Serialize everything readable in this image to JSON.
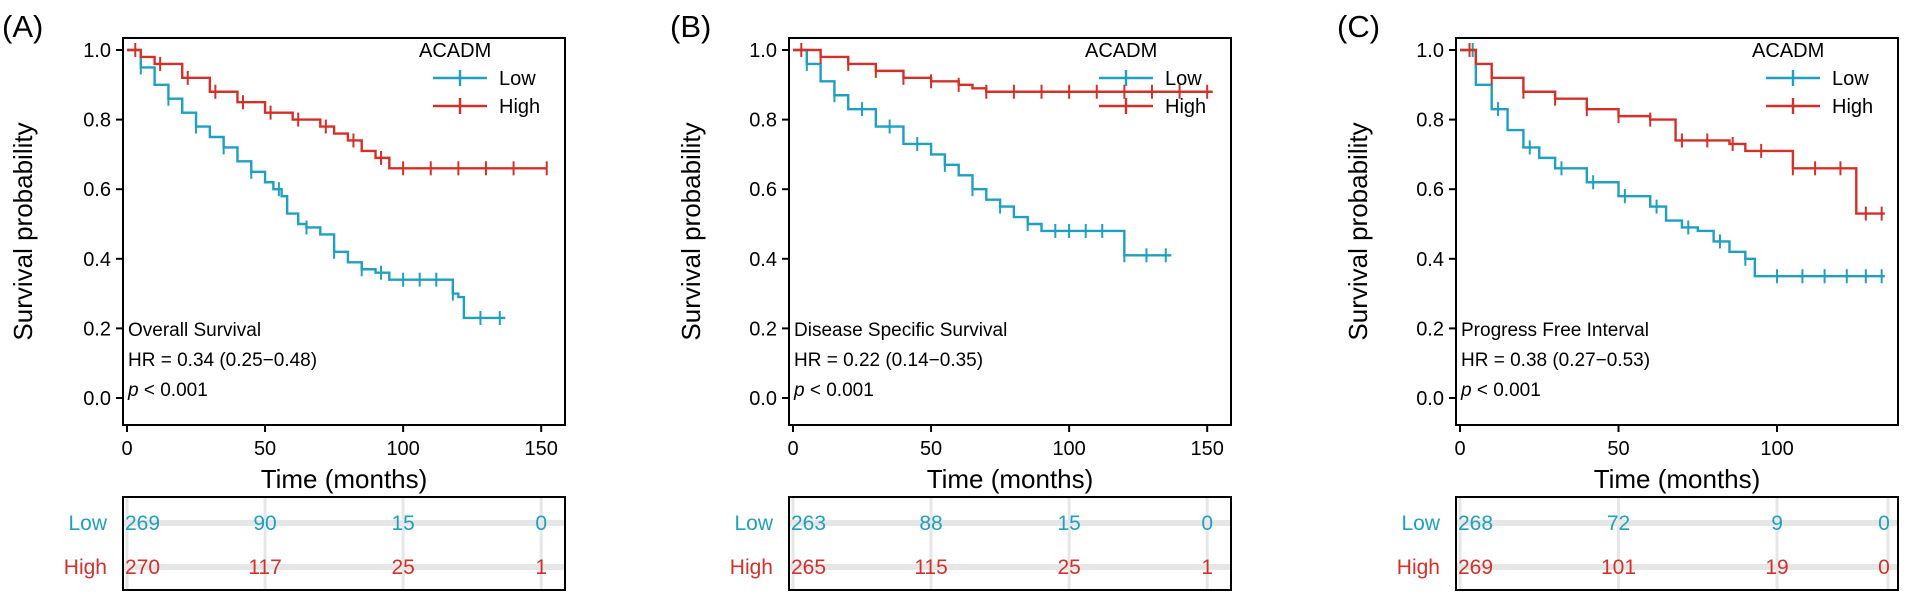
{
  "colors": {
    "low": "#1f9fc1",
    "high": "#d3302a",
    "axis": "#000000",
    "grid": "#e6e6e6"
  },
  "chart_data": [
    {
      "type": "line",
      "panel_label": "(A)",
      "xlabel": "Time (months)",
      "ylabel": "Survival probability",
      "xlim": [
        0,
        155
      ],
      "ylim": [
        0,
        1.0
      ],
      "x_ticks": [
        0,
        50,
        100,
        150
      ],
      "y_ticks": [
        "0.0",
        "0.2",
        "0.4",
        "0.6",
        "0.8",
        "1.0"
      ],
      "legend_title": "ACADM",
      "legend_position": "top-right",
      "annotation": {
        "title": "Overall Survival",
        "hr": "HR = 0.34 (0.25−0.48)",
        "p_italic": "p",
        "p_rest": " < 0.001"
      },
      "series": [
        {
          "name": "Low",
          "x": [
            0,
            5,
            10,
            15,
            20,
            25,
            30,
            35,
            40,
            45,
            50,
            53,
            56,
            58,
            62,
            65,
            70,
            75,
            80,
            85,
            90,
            95,
            100,
            105,
            110,
            115,
            118,
            120,
            122,
            128,
            137
          ],
          "y": [
            1.0,
            0.95,
            0.9,
            0.86,
            0.82,
            0.78,
            0.75,
            0.72,
            0.68,
            0.65,
            0.62,
            0.6,
            0.58,
            0.53,
            0.5,
            0.49,
            0.47,
            0.42,
            0.39,
            0.37,
            0.36,
            0.34,
            0.34,
            0.34,
            0.34,
            0.34,
            0.3,
            0.29,
            0.23,
            0.23,
            0.23
          ],
          "censor_x": [
            5,
            15,
            25,
            35,
            45,
            55,
            65,
            75,
            85,
            92,
            100,
            106,
            112,
            118,
            128,
            135
          ]
        },
        {
          "name": "High",
          "x": [
            0,
            5,
            10,
            20,
            30,
            40,
            50,
            60,
            70,
            75,
            80,
            85,
            90,
            95,
            100,
            120,
            140,
            152
          ],
          "y": [
            1.0,
            0.98,
            0.96,
            0.92,
            0.88,
            0.85,
            0.82,
            0.8,
            0.78,
            0.76,
            0.74,
            0.71,
            0.69,
            0.66,
            0.66,
            0.66,
            0.66,
            0.66
          ],
          "censor_x": [
            3,
            12,
            22,
            32,
            42,
            52,
            62,
            72,
            82,
            92,
            100,
            110,
            120,
            130,
            140,
            152
          ]
        }
      ],
      "risk_table": {
        "times": [
          0,
          50,
          100,
          150
        ],
        "rows": [
          {
            "name": "Low",
            "values": [
              "269",
              "90",
              "15",
              "0"
            ]
          },
          {
            "name": "High",
            "values": [
              "270",
              "117",
              "25",
              "1"
            ]
          }
        ]
      }
    },
    {
      "type": "line",
      "panel_label": "(B)",
      "xlabel": "Time (months)",
      "ylabel": "Survival probability",
      "xlim": [
        0,
        155
      ],
      "ylim": [
        0,
        1.0
      ],
      "x_ticks": [
        0,
        50,
        100,
        150
      ],
      "y_ticks": [
        "0.0",
        "0.2",
        "0.4",
        "0.6",
        "0.8",
        "1.0"
      ],
      "legend_title": "ACADM",
      "legend_position": "top-right",
      "annotation": {
        "title": "Disease Specific Survival",
        "hr": "HR = 0.22 (0.14−0.35)",
        "p_italic": "p",
        "p_rest": " < 0.001"
      },
      "series": [
        {
          "name": "Low",
          "x": [
            0,
            5,
            10,
            15,
            20,
            30,
            40,
            50,
            55,
            60,
            65,
            70,
            75,
            80,
            85,
            90,
            100,
            110,
            117,
            120,
            130,
            137
          ],
          "y": [
            1.0,
            0.96,
            0.91,
            0.87,
            0.83,
            0.78,
            0.73,
            0.7,
            0.67,
            0.64,
            0.6,
            0.57,
            0.55,
            0.52,
            0.5,
            0.48,
            0.48,
            0.48,
            0.48,
            0.41,
            0.41,
            0.41
          ],
          "censor_x": [
            5,
            15,
            25,
            35,
            45,
            55,
            65,
            75,
            85,
            95,
            100,
            106,
            112,
            120,
            128,
            135
          ]
        },
        {
          "name": "High",
          "x": [
            0,
            10,
            20,
            30,
            40,
            50,
            60,
            65,
            70,
            75,
            80,
            100,
            152
          ],
          "y": [
            1.0,
            0.98,
            0.96,
            0.94,
            0.92,
            0.91,
            0.9,
            0.89,
            0.88,
            0.88,
            0.88,
            0.88,
            0.88
          ],
          "censor_x": [
            3,
            10,
            20,
            30,
            40,
            50,
            60,
            70,
            80,
            90,
            100,
            110,
            120,
            130,
            140,
            150
          ]
        }
      ],
      "risk_table": {
        "times": [
          0,
          50,
          100,
          150
        ],
        "rows": [
          {
            "name": "Low",
            "values": [
              "263",
              "88",
              "15",
              "0"
            ]
          },
          {
            "name": "High",
            "values": [
              "265",
              "115",
              "25",
              "1"
            ]
          }
        ]
      }
    },
    {
      "type": "line",
      "panel_label": "(C)",
      "xlabel": "Time (months)",
      "ylabel": "Survival probability",
      "xlim": [
        0,
        135
      ],
      "ylim": [
        0,
        1.0
      ],
      "x_ticks": [
        0,
        50,
        100
      ],
      "y_ticks": [
        "0.0",
        "0.2",
        "0.4",
        "0.6",
        "0.8",
        "1.0"
      ],
      "legend_title": "ACADM",
      "legend_position": "top-right",
      "annotation": {
        "title": "Progress Free Interval",
        "hr": "HR = 0.38 (0.27−0.53)",
        "p_italic": "p",
        "p_rest": " < 0.001"
      },
      "series": [
        {
          "name": "Low",
          "x": [
            0,
            5,
            10,
            15,
            20,
            25,
            30,
            40,
            50,
            60,
            65,
            70,
            75,
            80,
            85,
            90,
            93,
            100,
            110,
            120,
            134
          ],
          "y": [
            1.0,
            0.9,
            0.83,
            0.77,
            0.72,
            0.69,
            0.66,
            0.62,
            0.58,
            0.55,
            0.51,
            0.49,
            0.48,
            0.45,
            0.42,
            0.4,
            0.35,
            0.35,
            0.35,
            0.35,
            0.35
          ],
          "censor_x": [
            4,
            12,
            22,
            32,
            42,
            52,
            62,
            72,
            82,
            90,
            100,
            108,
            115,
            122,
            128,
            133
          ]
        },
        {
          "name": "High",
          "x": [
            0,
            5,
            10,
            20,
            30,
            40,
            50,
            60,
            65,
            68,
            80,
            85,
            90,
            100,
            105,
            110,
            120,
            124,
            125,
            134
          ],
          "y": [
            1.0,
            0.96,
            0.92,
            0.88,
            0.86,
            0.83,
            0.81,
            0.8,
            0.8,
            0.74,
            0.74,
            0.73,
            0.71,
            0.71,
            0.66,
            0.66,
            0.66,
            0.66,
            0.53,
            0.53
          ],
          "censor_x": [
            3,
            10,
            20,
            30,
            40,
            50,
            60,
            70,
            78,
            86,
            95,
            105,
            112,
            120,
            128,
            133
          ]
        }
      ],
      "risk_table": {
        "times": [
          0,
          50,
          100,
          135
        ],
        "rows": [
          {
            "name": "Low",
            "values": [
              "268",
              "72",
              "9",
              "0"
            ]
          },
          {
            "name": "High",
            "values": [
              "269",
              "101",
              "19",
              "0"
            ]
          }
        ]
      }
    }
  ]
}
